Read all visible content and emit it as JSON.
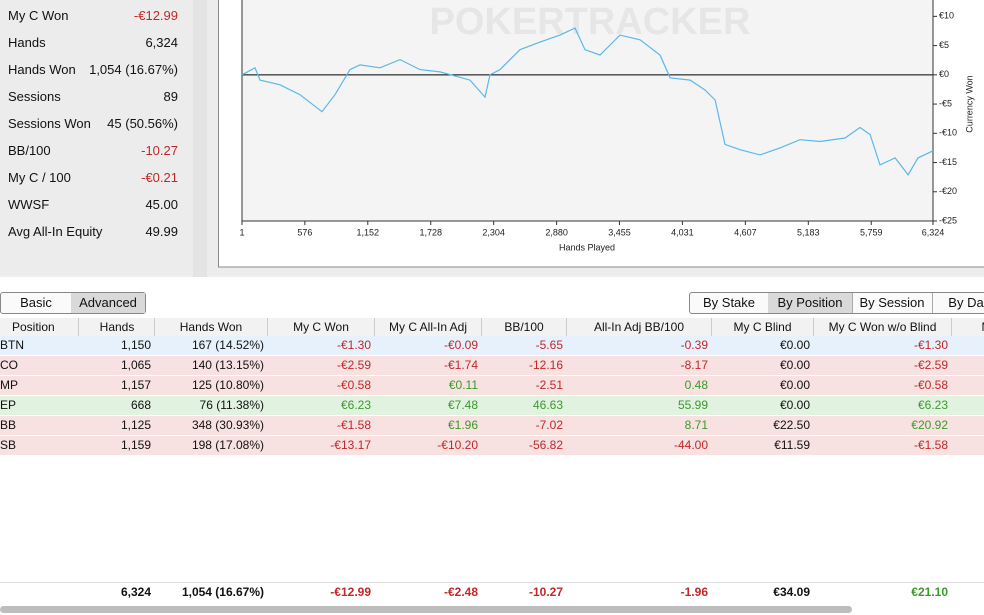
{
  "stats": [
    {
      "label": "My C Won",
      "value": "-€12.99"
    },
    {
      "label": "Hands",
      "value": "6,324"
    },
    {
      "label": "Hands Won",
      "value": "1,054 (16.67%)"
    },
    {
      "label": "Sessions",
      "value": "89"
    },
    {
      "label": "Sessions Won",
      "value": "45 (50.56%)"
    },
    {
      "label": "BB/100",
      "value": "-10.27"
    },
    {
      "label": "My C / 100",
      "value": "-€0.21"
    },
    {
      "label": "WWSF",
      "value": "45.00"
    },
    {
      "label": "Avg All-In Equity",
      "value": "49.99"
    }
  ],
  "chart_data": {
    "type": "line",
    "watermark": "POKERTRACKER",
    "xlabel": "Hands Played",
    "ylabel": "Currency Won",
    "color": "#5bb8e8",
    "x": [
      1,
      120,
      166,
      349,
      532,
      733,
      852,
      989,
      1081,
      1264,
      1447,
      1630,
      1813,
      2087,
      2225,
      2270,
      2362,
      2545,
      2728,
      2911,
      3048,
      3140,
      3277,
      3460,
      3643,
      3826,
      3918,
      4101,
      4238,
      4330,
      4421,
      4558,
      4741,
      4924,
      5107,
      5290,
      5519,
      5656,
      5748,
      5839,
      5977,
      6096,
      6187,
      6324
    ],
    "values": [
      0,
      1.2,
      -0.9,
      -1.7,
      -3.4,
      -6.3,
      -3.4,
      0.9,
      1.7,
      1.2,
      2.6,
      0.9,
      0.5,
      -0.9,
      -3.8,
      0,
      0.9,
      4.3,
      5.6,
      6.8,
      8.0,
      4.3,
      3.4,
      6.8,
      6.0,
      3.4,
      -0.5,
      -0.9,
      -2.6,
      -4.3,
      -11.9,
      -12.8,
      -13.7,
      -12.5,
      -11.1,
      -11.4,
      -10.8,
      -9.0,
      -10.2,
      -15.4,
      -14.2,
      -17.1,
      -14.2,
      -12.99
    ],
    "xlim": [
      1,
      6324
    ],
    "ylim": [
      -25,
      12.8
    ],
    "xticks": [
      1,
      576,
      {
        "value": 1152,
        "label": "1,152"
      },
      {
        "value": 1728,
        "label": "1,728"
      },
      {
        "value": 2304,
        "label": "2,304"
      },
      {
        "value": 2880,
        "label": "2,880"
      },
      {
        "value": 3455,
        "label": "3,455"
      },
      {
        "value": 4031,
        "label": "4,031"
      },
      {
        "value": 4607,
        "label": "4,607"
      },
      {
        "value": 5183,
        "label": "5,183"
      },
      {
        "value": 5759,
        "label": "5,759"
      },
      {
        "value": 6324,
        "label": "6,324"
      }
    ],
    "yticks": [
      {
        "value": 10,
        "label": "€10"
      },
      {
        "value": 5,
        "label": "€5"
      },
      {
        "value": 0,
        "label": "€0"
      },
      {
        "value": -5,
        "label": "-€5"
      },
      {
        "value": -10,
        "label": "-€10"
      },
      {
        "value": -15,
        "label": "-€15"
      },
      {
        "value": -20,
        "label": "-€20"
      },
      {
        "value": -25,
        "label": "-€25"
      }
    ]
  },
  "tabs_left": [
    "Basic",
    "Advanced"
  ],
  "tabs_right": [
    "By Stake",
    "By Position",
    "By Session",
    "By Da"
  ],
  "table": {
    "header": [
      "Position",
      "Hands",
      "Hands Won",
      "My C Won",
      "My C All-In Adj",
      "BB/100",
      "All-In Adj BB/100",
      "My C Blind",
      "My C Won w/o Blind",
      "My C"
    ],
    "rows": [
      [
        "BTN",
        "1,150",
        "167 (14.52%)",
        "-€1.30",
        "-€0.09",
        "-5.65",
        "-0.39",
        "€0.00",
        "-€1.30"
      ],
      [
        "CO",
        "1,065",
        "140 (13.15%)",
        "-€2.59",
        "-€1.74",
        "-12.16",
        "-8.17",
        "€0.00",
        "-€2.59"
      ],
      [
        "MP",
        "1,157",
        "125 (10.80%)",
        "-€0.58",
        "€0.11",
        "-2.51",
        "0.48",
        "€0.00",
        "-€0.58"
      ],
      [
        "EP",
        "668",
        "76 (11.38%)",
        "€6.23",
        "€7.48",
        "46.63",
        "55.99",
        "€0.00",
        "€6.23"
      ],
      [
        "BB",
        "1,125",
        "348 (30.93%)",
        "-€1.58",
        "€1.96",
        "-7.02",
        "8.71",
        "€22.50",
        "€20.92"
      ],
      [
        "SB",
        "1,159",
        "198 (17.08%)",
        "-€13.17",
        "-€10.20",
        "-56.82",
        "-44.00",
        "€11.59",
        "-€1.58"
      ]
    ],
    "row_colors": [
      "#e6f1fb",
      "#f7e1e1",
      "#f7e1e1",
      "#e1f2e1",
      "#f7e1e1",
      "#f7e1e1"
    ],
    "totals": [
      "",
      "6,324",
      "1,054 (16.67%)",
      "-€12.99",
      "-€2.48",
      "-10.27",
      "-1.96",
      "€34.09",
      "€21.10"
    ]
  }
}
